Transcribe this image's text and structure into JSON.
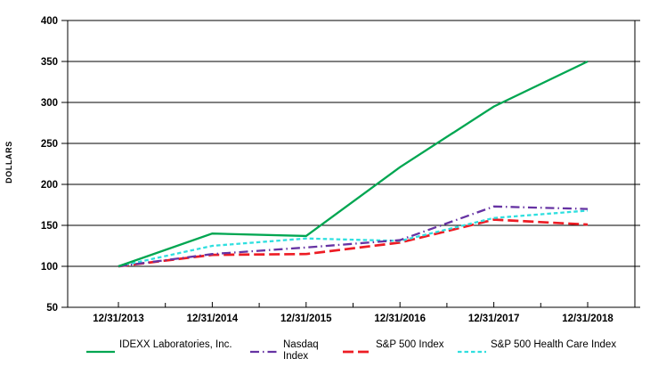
{
  "chart_data": {
    "type": "line",
    "title": "",
    "xlabel": "",
    "ylabel": "DOLLARS",
    "categories": [
      "12/31/2013",
      "12/31/2014",
      "12/31/2015",
      "12/31/2016",
      "12/31/2017",
      "12/31/2018"
    ],
    "y_ticks": [
      50,
      100,
      150,
      200,
      250,
      300,
      350,
      400
    ],
    "ylim": [
      50,
      400
    ],
    "grid": "horizontal",
    "legend_position": "bottom",
    "axis_color": "#000000",
    "background_color": "#ffffff",
    "series": [
      {
        "name": "IDEXX Laboratories, Inc.",
        "color": "#00A651",
        "dash": "solid",
        "stroke_width": 2.3,
        "values": [
          100,
          140,
          137,
          221,
          295,
          350
        ]
      },
      {
        "name": "Nasdaq Index",
        "color": "#6633A3",
        "dash": "dash-dot",
        "stroke_width": 2.3,
        "values": [
          100,
          115,
          123,
          132,
          173,
          170
        ]
      },
      {
        "name": "S&P 500 Index",
        "color": "#ED1C24",
        "dash": "long-dash",
        "stroke_width": 2.7,
        "values": [
          100,
          114,
          115,
          129,
          157,
          151
        ]
      },
      {
        "name": "S&P 500 Health Care Index",
        "color": "#2FDFDF",
        "dash": "short-dash",
        "stroke_width": 2.3,
        "values": [
          100,
          125,
          134,
          131,
          159,
          168
        ]
      }
    ]
  }
}
